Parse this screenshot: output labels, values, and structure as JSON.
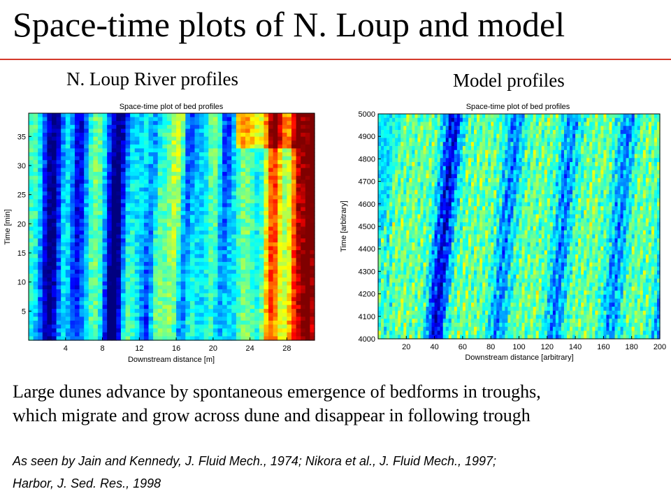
{
  "slide": {
    "title": "Space-time plots of N. Loup and model",
    "caption_left": "N. Loup River profiles",
    "caption_right": "Model profiles",
    "body_lines": [
      "Large dunes advance by spontaneous emergence of bedforms in troughs,",
      "which migrate and grow across dune and disappear in following trough"
    ],
    "citation_lines": [
      "As seen by Jain and Kennedy, J. Fluid Mech., 1974; Nikora et al., J. Fluid Mech., 1997;",
      "Harbor, J. Sed. Res., 1998"
    ],
    "accent_color": "#d43a2b"
  },
  "chart_data": [
    {
      "type": "heatmap",
      "title": "Space-time plot of bed profiles",
      "xlabel": "Downstream distance [m]",
      "ylabel": "Time [min]",
      "xlim": [
        0,
        31
      ],
      "ylim": [
        0,
        39
      ],
      "xticks": [
        4,
        8,
        12,
        16,
        20,
        24,
        28
      ],
      "yticks": [
        5,
        10,
        15,
        20,
        25,
        30,
        35
      ],
      "colormap": "jet",
      "value_range": "low (blue) to high (red) bed elevation",
      "features": "near-vertical bands of troughs (blue) and crests (red) migrating slowly downstream"
    },
    {
      "type": "heatmap",
      "title": "Space-time plot of bed profiles",
      "xlabel": "Downstream distance [arbitrary]",
      "ylabel": "Time [arbitrary]",
      "xlim": [
        0,
        200
      ],
      "ylim": [
        4000,
        5000
      ],
      "xticks": [
        20,
        40,
        60,
        80,
        100,
        120,
        140,
        160,
        180,
        200
      ],
      "yticks": [
        4000,
        4100,
        4200,
        4300,
        4400,
        4500,
        4600,
        4700,
        4800,
        4900,
        5000
      ],
      "colormap": "jet",
      "value_range": "low (blue) to high (red) bed elevation",
      "features": "many small bedforms migrating diagonally across large dunes and disappearing into troughs"
    }
  ]
}
